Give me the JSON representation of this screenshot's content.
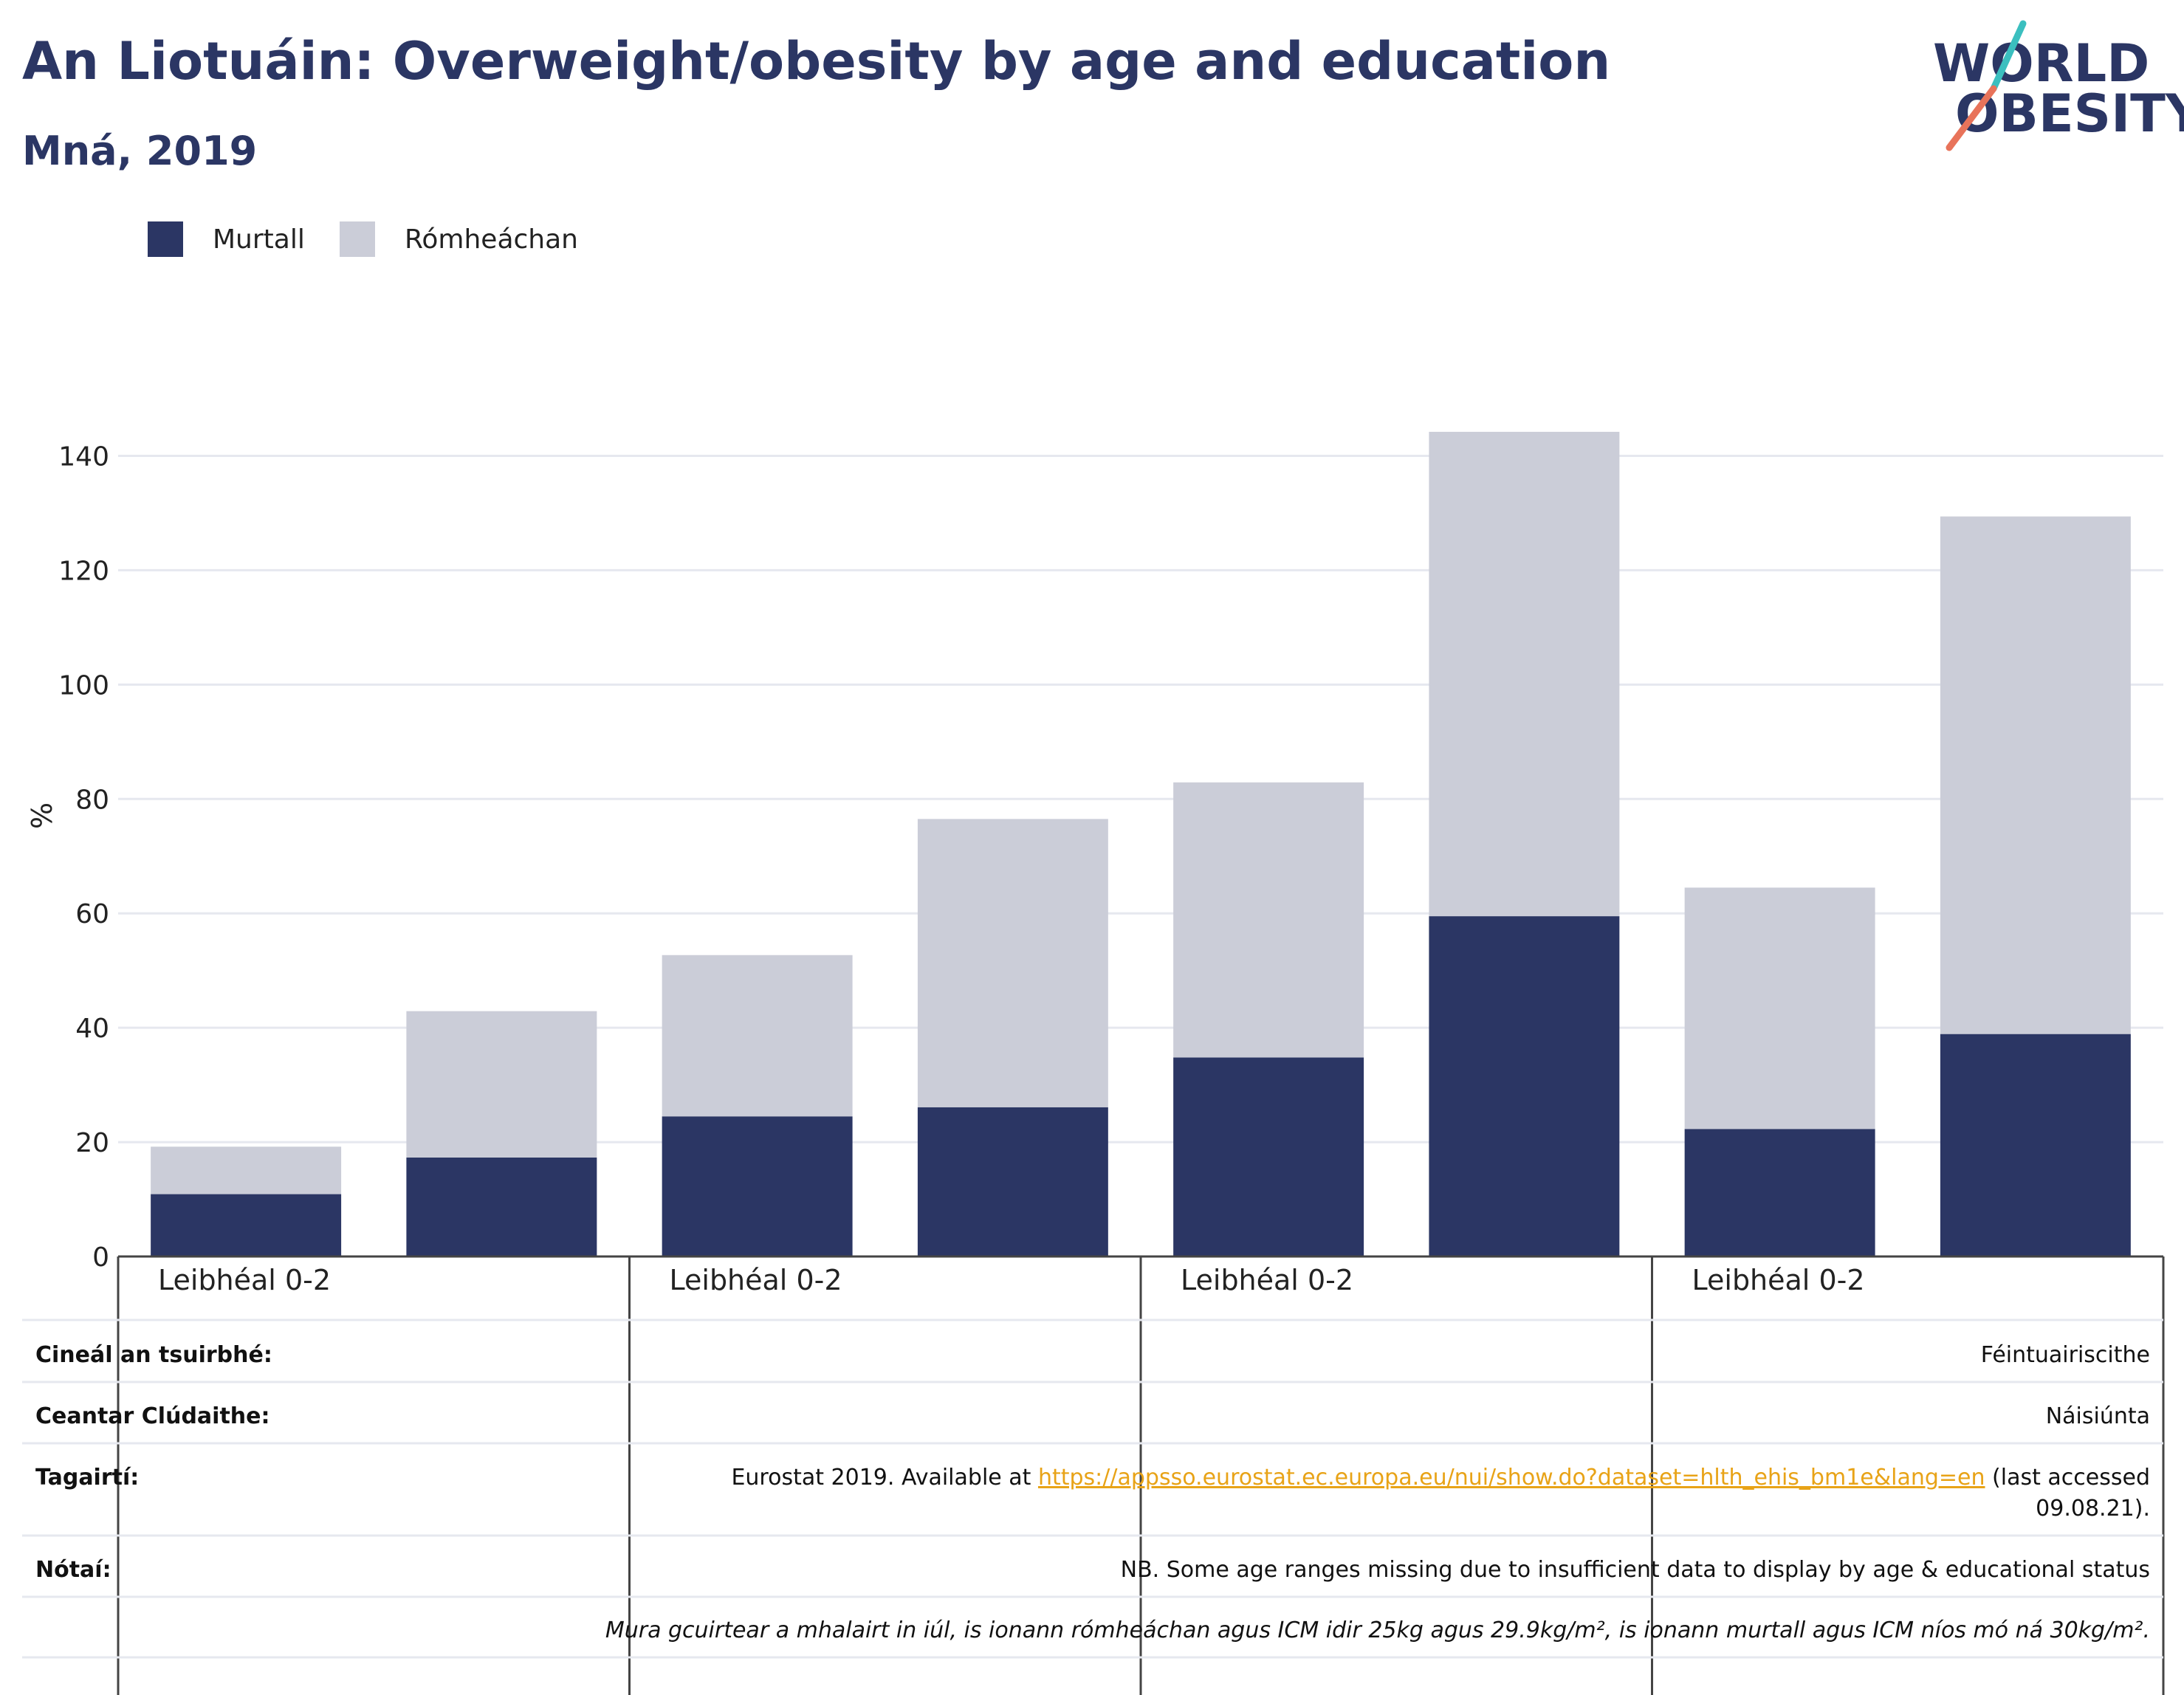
{
  "header": {
    "title": "An Liotuáin: Overweight/obesity by age and education",
    "subtitle": "Mná, 2019"
  },
  "logo": {
    "line1": "WORLD",
    "line2": "OBESITY",
    "colors": {
      "text": "#2b3664",
      "slash_top": "#3bbfbf",
      "slash_bottom": "#e8735a"
    }
  },
  "colors": {
    "obese": "#2b3664",
    "overweight": "#cbcdd8",
    "grid": "#e6e8ef",
    "link": "#e8a317"
  },
  "chart_data": {
    "type": "bar",
    "stacked": true,
    "categories": [
      "",
      "",
      "",
      "",
      "",
      "",
      "",
      ""
    ],
    "group_labels": [
      "Leibhéal 0-2",
      "Leibhéal 0-2",
      "Leibhéal 0-2",
      "Leibhéal 0-2"
    ],
    "series": [
      {
        "name": "Murtall",
        "values": [
          10.9,
          17.3,
          24.5,
          26.1,
          34.8,
          59.5,
          22.3,
          38.9
        ]
      },
      {
        "name": "Rómheáchan",
        "values": [
          8.3,
          25.6,
          28.2,
          50.4,
          48.1,
          84.7,
          42.2,
          90.5
        ]
      }
    ],
    "xlabel": "",
    "ylabel": "%",
    "ylim": [
      0,
      150
    ],
    "yticks": [
      0,
      20,
      40,
      60,
      80,
      100,
      120,
      140
    ],
    "grid": true,
    "legend_position": "top-left"
  },
  "table": {
    "rows": [
      {
        "label": "Cineál an tsuirbhé:",
        "value": "Féintuairiscithe"
      },
      {
        "label": "Ceantar Clúdaithe:",
        "value": "Náisiúnta"
      },
      {
        "label": "Tagairtí:",
        "value_prefix": "Eurostat 2019. Available at ",
        "link": "https://appsso.eurostat.ec.europa.eu/nui/show.do?dataset=hlth_ehis_bm1e&lang=en",
        "value_suffix": " (last accessed",
        "value_line2": "09.08.21)."
      },
      {
        "label": "Nótaí:",
        "value": "NB. Some age ranges missing due to insufficient data to display by age & educational status"
      },
      {
        "label": "",
        "value": "Mura gcuirtear a mhalairt in iúl, is ionann rómheáchan agus ICM idir 25kg agus 29.9kg/m², is ionann murtall agus ICM níos mó ná 30kg/m²."
      }
    ]
  }
}
